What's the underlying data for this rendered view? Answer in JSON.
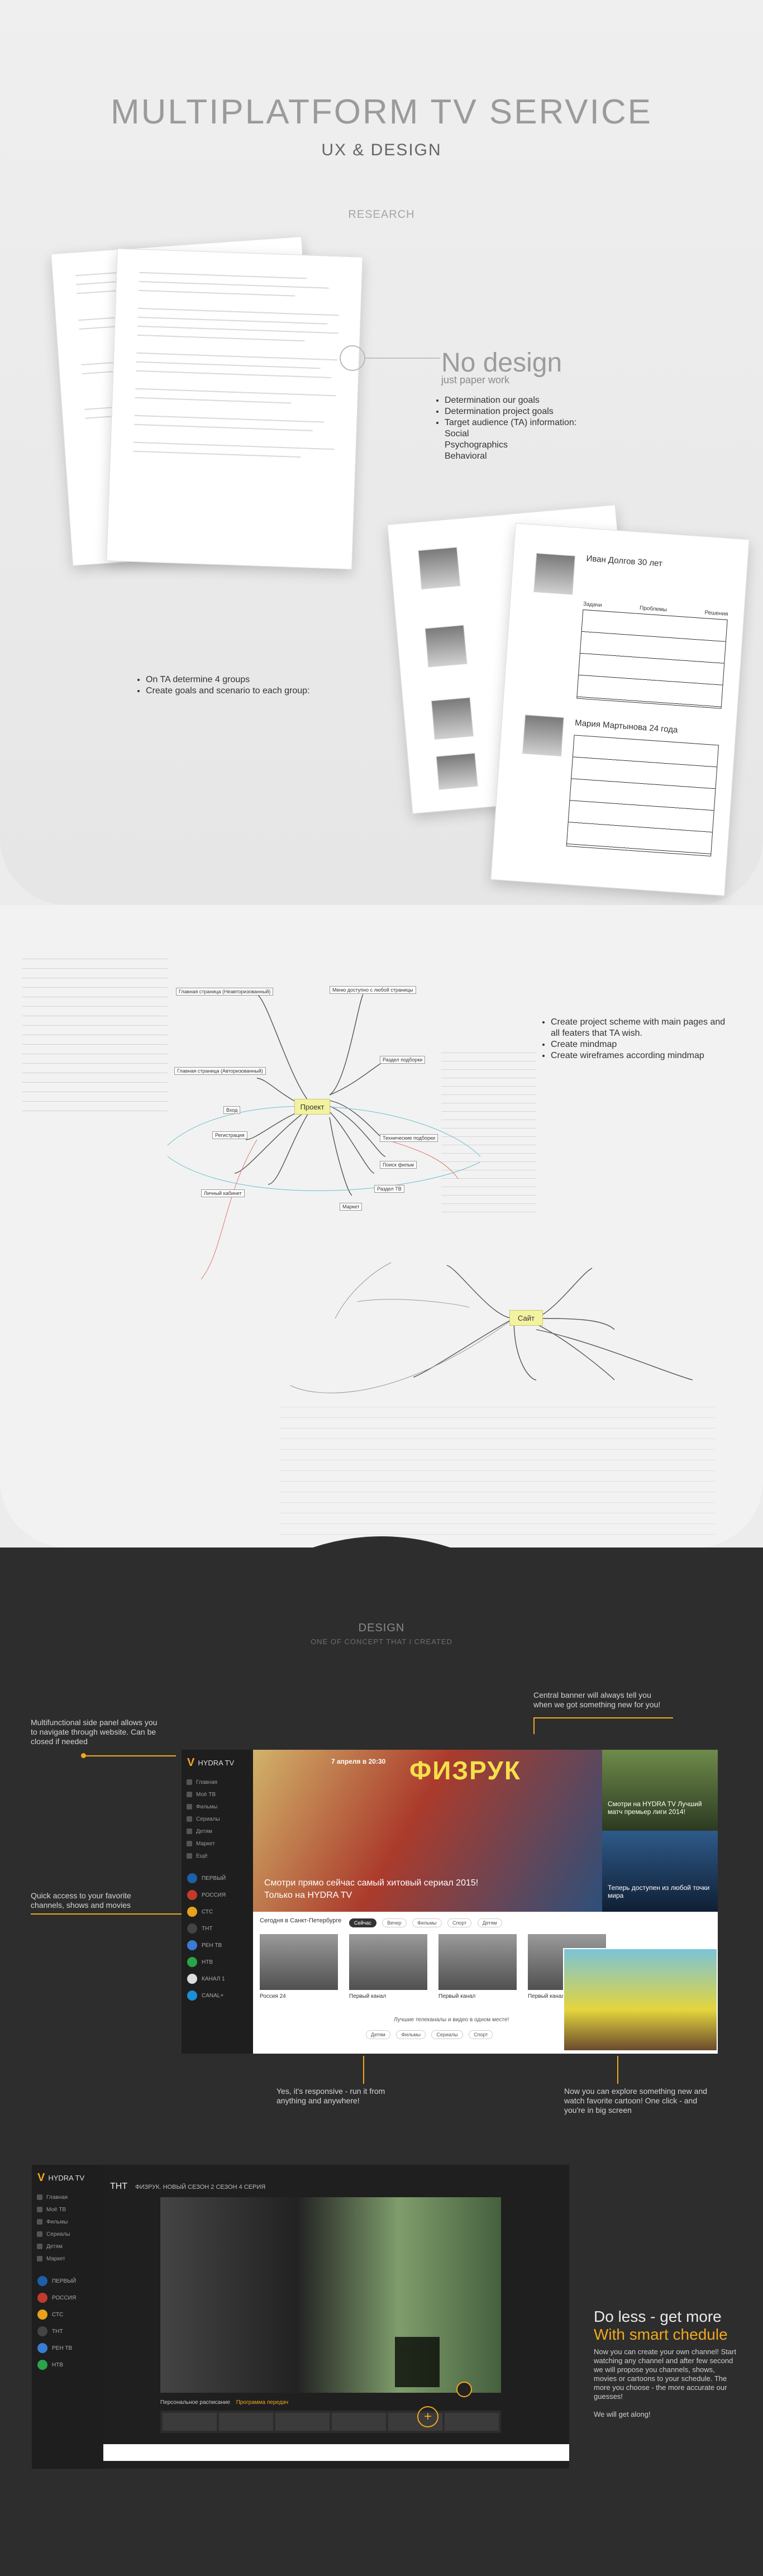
{
  "header": {
    "title": "MULTIPLATFORM TV SERVICE",
    "subtitle": "UX & DESIGN",
    "research_label": "RESEARCH"
  },
  "nodesign": {
    "title": "No design",
    "subtitle": "just paper work",
    "points": [
      "Determination  our goals",
      "Determination project goals",
      "Target audience (TA) information:"
    ],
    "subpoints": [
      "Social",
      "Psychographics",
      "Behavioral"
    ]
  },
  "research_points": [
    "On TA determine 4 groups",
    "Create goals and scenario to each group:"
  ],
  "persona": {
    "name": "Иван Долгов  30 лет",
    "name2": "Мария Мартынова  24 года",
    "col_goal": "Задачи",
    "col_problem": "Проблемы",
    "col_solution": "Решения"
  },
  "mindmap": {
    "center_project": "Проект",
    "center_site": "Сайт",
    "points": [
      "Create project scheme with main pages and all featers that TA wish.",
      "Create mindmap",
      "Create wireframes according mindmap"
    ],
    "nodes": [
      "Главная страница (Неавторизованный)",
      "Главная страница (Авторизованный)",
      "Меню доступно с любой страницы",
      "Раздел подборки",
      "Технические подборки",
      "Поиск фильм",
      "Раздел ТВ",
      "Маркет",
      "Личный кабинет",
      "Регистрация",
      "Вход"
    ]
  },
  "design": {
    "title": "DESIGN",
    "subtitle": "ONE OF CONCEPT THAT I CREATED"
  },
  "annotations": {
    "side_panel": "Multifunctional side panel allows you to navigate through website. Can be closed if needed",
    "central_banner": "Central banner will always tell you when we got something new for you!",
    "quick_access": "Quick access to your favorite channels, shows and movies",
    "responsive": "Yes, it's responsive - run it from anything and anywhere!",
    "explore": "Now you can explore something new and watch favorite cartoon! One click - and you're in big screen"
  },
  "site": {
    "logo": "HYDRA TV",
    "menu": [
      "Главная",
      "Моё ТВ",
      "Фильмы",
      "Сериалы",
      "Детям",
      "Маркет",
      "Ещё"
    ],
    "channels": [
      "ПЕРВЫЙ",
      "РОССИЯ",
      "СТС",
      "ТНТ",
      "РЕН ТВ",
      "НТВ",
      "КАНАЛ 1",
      "CANAL+"
    ],
    "banner_line1": "Смотри прямо сейчас самый хитовый сериал 2015!",
    "banner_line2": "Только на HYDRA TV",
    "banner_show": "ФИЗРУК",
    "banner_date": "7 апреля в 20:30",
    "side_card1": "Смотри на HYDRA TV Лучший матч премьер лиги 2014!",
    "side_card2": "Теперь доступен из любой точки мира",
    "now_title": "Сегодня в Санкт-Петербурге",
    "tabs": [
      "Сейчас",
      "Вечер",
      "Фильмы",
      "Спорт",
      "Детям"
    ],
    "cards": [
      "Россия 24",
      "Первый канал",
      "Первый канал",
      "Первый канал"
    ],
    "bottom_prompt": "Лучшие телеканалы и видео в одном месте!",
    "bottom_tabs": [
      "Детям",
      "Фильмы",
      "Сериалы",
      "Спорт"
    ]
  },
  "player": {
    "logo": "HYDRA TV",
    "channel": "ТНТ",
    "now": "ФИЗРУК. НОВЫЙ СЕЗОН 2 СЕЗОН 4 СЕРИЯ",
    "schedule": "Персональное расписание",
    "schedule_link": "Программа передач"
  },
  "smart": {
    "title": "Do less - get more",
    "subtitle": "With smart chedule",
    "text": "Now you can create your own channel! Start watching any channel and after few second we will propose you channels, shows, movies or cartoons to your schedule. The more you choose - the more accurate our guesses!",
    "cta": "We will get along!"
  },
  "colors": {
    "accent": "#f2a81d",
    "dark": "#2d2d2d",
    "sidebar": "#1e1e1e"
  }
}
